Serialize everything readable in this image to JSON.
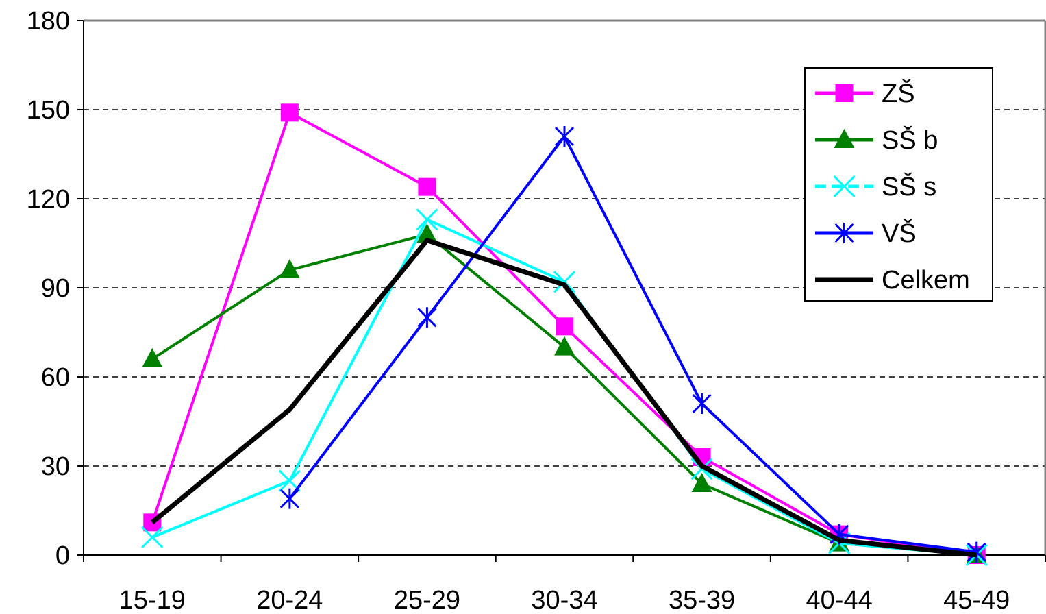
{
  "chart_data": {
    "type": "line",
    "title": "",
    "xlabel": "",
    "ylabel": "",
    "categories": [
      "15-19",
      "20-24",
      "25-29",
      "30-34",
      "35-39",
      "40-44",
      "45-49"
    ],
    "ylim": [
      0,
      180
    ],
    "yticks": [
      0,
      30,
      60,
      90,
      120,
      150,
      180
    ],
    "grid": "horizontal dashed",
    "legend_position": "top-right",
    "series": [
      {
        "name": "ZŠ",
        "color": "#ff00ff",
        "marker": "square",
        "values": [
          11,
          149,
          124,
          77,
          33,
          7,
          0
        ]
      },
      {
        "name": "SŠ b",
        "color": "#008000",
        "marker": "triangle",
        "values": [
          66,
          96,
          108,
          70,
          24,
          4,
          0
        ]
      },
      {
        "name": "SŠ s",
        "color": "#00ffff",
        "marker": "x",
        "values": [
          6,
          25,
          113,
          92,
          29,
          4,
          0
        ]
      },
      {
        "name": "VŠ",
        "color": "#0000ff",
        "marker": "asterisk",
        "values": [
          null,
          19,
          80,
          141,
          51,
          7,
          1
        ]
      },
      {
        "name": "Celkem",
        "color": "#000000",
        "marker": "none",
        "values": [
          11,
          49,
          106,
          91,
          30,
          5,
          0
        ]
      }
    ]
  }
}
